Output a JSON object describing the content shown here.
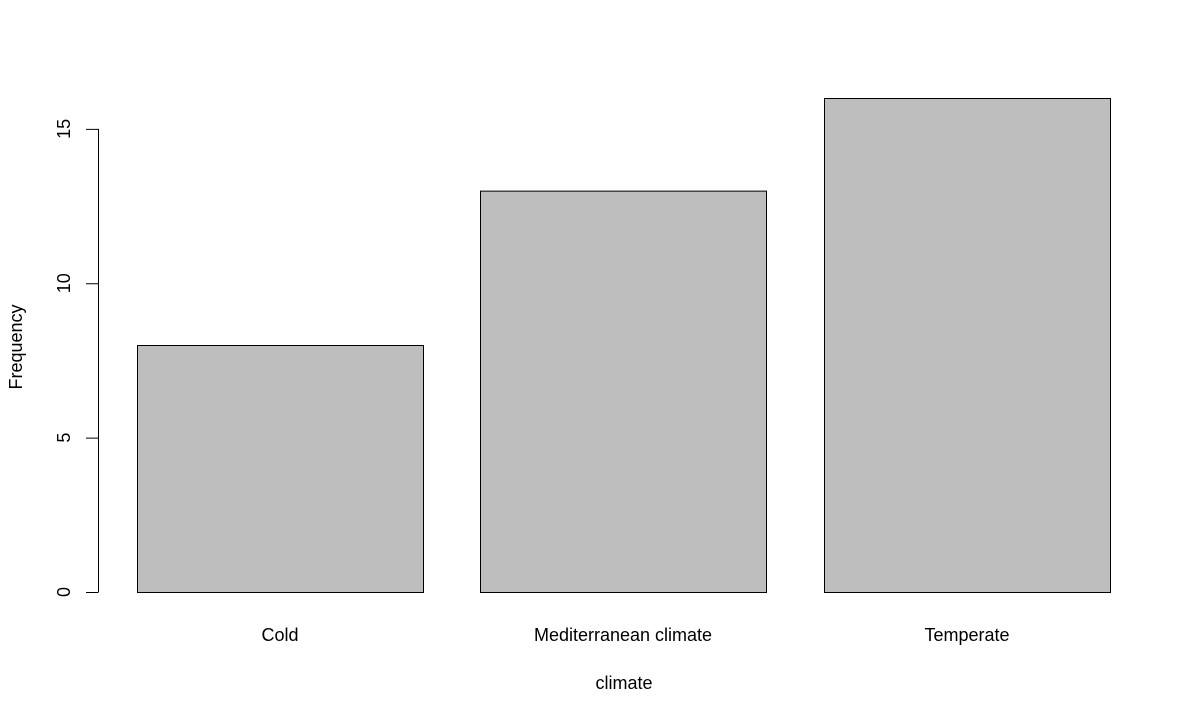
{
  "chart_data": {
    "type": "bar",
    "categories": [
      "Cold",
      "Mediterranean climate",
      "Temperate"
    ],
    "values": [
      8,
      13,
      16
    ],
    "title": "",
    "xlabel": "climate",
    "ylabel": "Frequency",
    "ylim": [
      0,
      16
    ],
    "yticks": [
      "0",
      "5",
      "10",
      "15"
    ],
    "grid": false,
    "legend": "none",
    "colors": {
      "bar_fill": "#bebebe",
      "bar_stroke": "#000000",
      "text": "#000000"
    }
  }
}
